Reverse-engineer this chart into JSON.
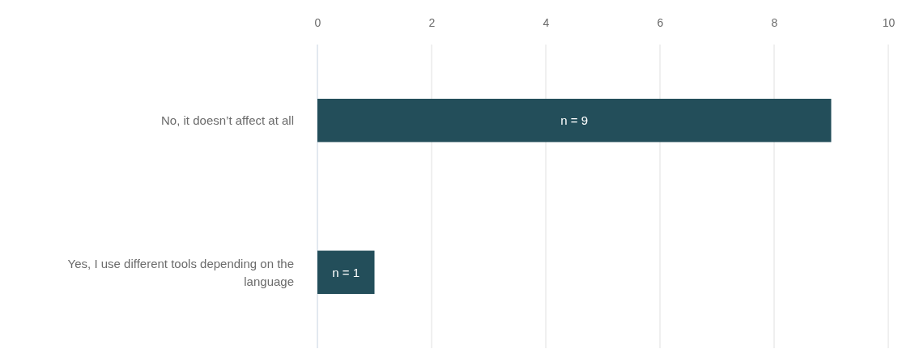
{
  "chart_data": {
    "type": "bar",
    "orientation": "horizontal",
    "categories": [
      "No, it doesn’t affect at all",
      "Yes, I use different tools depending on the language"
    ],
    "values": [
      9,
      1
    ],
    "color": "#234e5a",
    "value_labels": [
      "n = 9",
      "n = 1"
    ],
    "xlim": [
      0,
      10
    ],
    "xticks": [
      0,
      2,
      4,
      6,
      8,
      10
    ],
    "grid": "x"
  }
}
